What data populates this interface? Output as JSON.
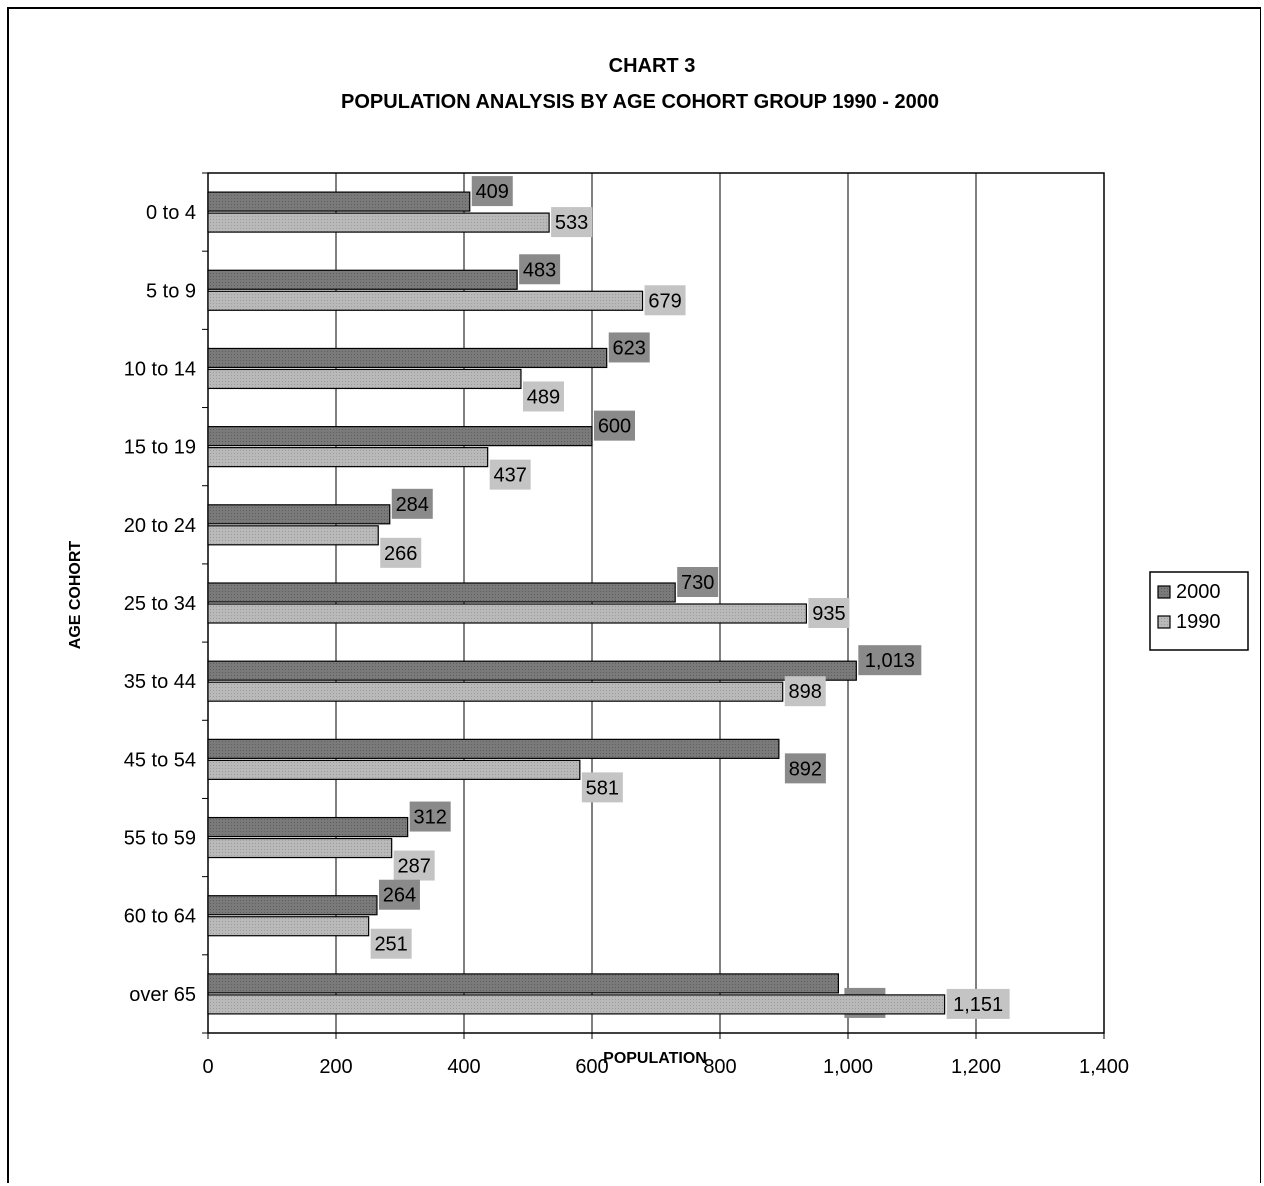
{
  "chart_data": {
    "type": "bar",
    "orientation": "horizontal",
    "title": "CHART 3",
    "subtitle": "POPULATION ANALYSIS BY AGE COHORT GROUP 1990 - 2000",
    "xlabel": "POPULATION",
    "ylabel": "AGE COHORT",
    "xlim": [
      0,
      1400
    ],
    "x_ticks": [
      "0",
      "200",
      "400",
      "600",
      "800",
      "1,000",
      "1,200",
      "1,400"
    ],
    "categories": [
      "0 to 4",
      "5 to 9",
      "10 to 14",
      "15 to 19",
      "20 to 24",
      "25 to 34",
      "35 to 44",
      "45 to 54",
      "55 to 59",
      "60 to 64",
      "over 65"
    ],
    "series": [
      {
        "name": "2000",
        "color": "#7a7a7a",
        "values": [
          409,
          483,
          623,
          600,
          284,
          730,
          1013,
          892,
          312,
          264,
          985
        ],
        "labels": [
          "409",
          "483",
          "623",
          "600",
          "284",
          "730",
          "1,013",
          "892",
          "312",
          "264",
          "985"
        ]
      },
      {
        "name": "1990",
        "color": "#b9b9b9",
        "values": [
          533,
          679,
          489,
          437,
          266,
          935,
          898,
          581,
          287,
          251,
          1151
        ],
        "labels": [
          "533",
          "679",
          "489",
          "437",
          "266",
          "935",
          "898",
          "581",
          "287",
          "251",
          "1,151"
        ]
      }
    ],
    "grid": true,
    "legend_placement": "right"
  }
}
